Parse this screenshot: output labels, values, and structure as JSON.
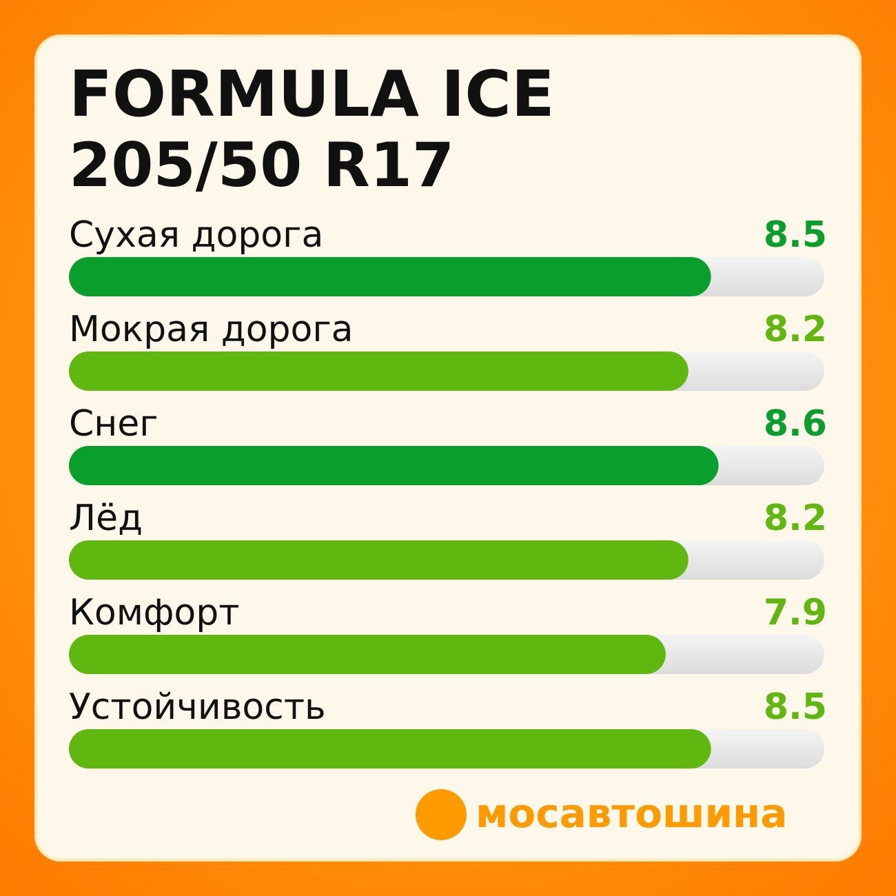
{
  "chart_data": {
    "type": "bar",
    "orientation": "horizontal",
    "title": "FORMULA ICE",
    "subtitle": "205/50 R17",
    "categories": [
      "Сухая дорога",
      "Мокрая дорога",
      "Снег",
      "Лёд",
      "Комфорт",
      "Устойчивость"
    ],
    "values": [
      8.5,
      8.2,
      8.6,
      8.2,
      7.9,
      8.5
    ],
    "colors": [
      "#0a9f2c",
      "#5fb70f",
      "#0a9f2c",
      "#5fb70f",
      "#5fb70f",
      "#5fb70f"
    ],
    "xlim": [
      0,
      10
    ]
  },
  "brand": "мосавтошина"
}
